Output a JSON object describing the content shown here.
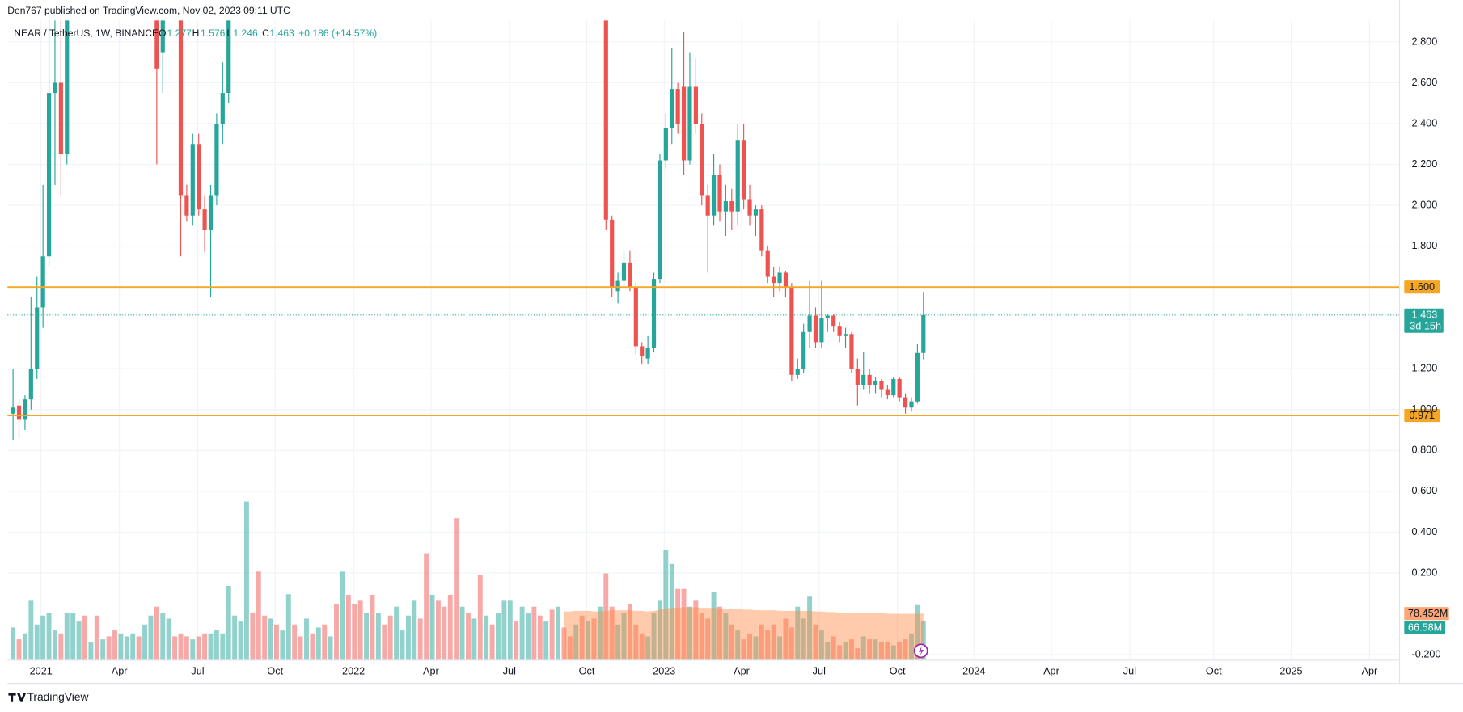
{
  "chart_data": {
    "type": "candlestick",
    "header": "Den767 published on TradingView.com, Nov 02, 2023 09:11 UTC",
    "symbol": "NEAR / TetherUS, 1W, BINANCE",
    "ohlc_labels": [
      "O",
      "H",
      "L",
      "C"
    ],
    "change": "+0.186 (+14.57%)",
    "countdown": "3d 15h",
    "brand": "TradingView",
    "up_color": "#26a69a",
    "down_color": "#ef5350",
    "level_color": "#f5a623",
    "grid": true,
    "xlim": [
      -0.93,
      231.5
    ],
    "ylim": [
      -0.227,
      2.905
    ],
    "xticks": [
      {
        "value": 4.67,
        "label": "2021"
      },
      {
        "value": 17.76,
        "label": "Apr"
      },
      {
        "value": 30.84,
        "label": "Jul"
      },
      {
        "value": 43.77,
        "label": "Oct"
      },
      {
        "value": 56.85,
        "label": "2022"
      },
      {
        "value": 69.78,
        "label": "Apr"
      },
      {
        "value": 82.87,
        "label": "Jul"
      },
      {
        "value": 95.79,
        "label": "Oct"
      },
      {
        "value": 108.72,
        "label": "2023"
      },
      {
        "value": 121.65,
        "label": "Apr"
      },
      {
        "value": 134.58,
        "label": "Jul"
      },
      {
        "value": 147.66,
        "label": "Oct"
      },
      {
        "value": 160.44,
        "label": "2024"
      },
      {
        "value": 173.36,
        "label": "Apr"
      },
      {
        "value": 186.45,
        "label": "Jul"
      },
      {
        "value": 200.47,
        "label": "Oct"
      },
      {
        "value": 213.4,
        "label": "2025"
      },
      {
        "value": 226.48,
        "label": "Apr"
      }
    ],
    "yticks": [
      {
        "value": 2.8,
        "label": "2.800"
      },
      {
        "value": 2.6,
        "label": "2.600"
      },
      {
        "value": 2.4,
        "label": "2.400"
      },
      {
        "value": 2.2,
        "label": "2.200"
      },
      {
        "value": 2.0,
        "label": "2.000"
      },
      {
        "value": 1.8,
        "label": "1.800"
      },
      {
        "value": 1.2,
        "label": "1.200"
      },
      {
        "value": 1.0,
        "label": "1.000"
      },
      {
        "value": 0.8,
        "label": "0.800"
      },
      {
        "value": 0.6,
        "label": "0.600"
      },
      {
        "value": 0.4,
        "label": "0.400"
      },
      {
        "value": 0.2,
        "label": "0.200"
      },
      {
        "value": -0.2,
        "label": "-0.200"
      }
    ],
    "levels": [
      {
        "value": 1.6,
        "label": "1.600"
      },
      {
        "value": 0.971,
        "label": "0.971"
      }
    ],
    "open": [
      0.98,
      1.02,
      0.95,
      1.05,
      1.2,
      1.5,
      1.75,
      2.55,
      2.6,
      2.25,
      null,
      null,
      null,
      null,
      null,
      null,
      null,
      null,
      null,
      null,
      null,
      null,
      null,
      null,
      3.1,
      2.75,
      null,
      null,
      3.0,
      2.05,
      1.95,
      2.3,
      1.98,
      1.88,
      2.05,
      2.4,
      2.55,
      null,
      null,
      null,
      null,
      null,
      null,
      null,
      null,
      null,
      null,
      null,
      null,
      null,
      null,
      null,
      null,
      null,
      null,
      null,
      null,
      null,
      null,
      null,
      null,
      null,
      null,
      null,
      null,
      null,
      null,
      null,
      null,
      null,
      null,
      null,
      null,
      null,
      null,
      null,
      null,
      null,
      null,
      null,
      null,
      null,
      null,
      null,
      null,
      null,
      null,
      null,
      null,
      null,
      null,
      null,
      null,
      null,
      null,
      null,
      null,
      null,
      null,
      3.2,
      1.93,
      1.58,
      1.63,
      1.72,
      1.6,
      1.31,
      1.25,
      1.3,
      1.64,
      2.22,
      2.38,
      2.57,
      2.58,
      2.22,
      2.58,
      2.4,
      2.05,
      1.95,
      2.15,
      1.97,
      2.02,
      1.97,
      2.32,
      2.03,
      1.95,
      1.98,
      1.78,
      1.65,
      1.62,
      1.67,
      1.6,
      1.17,
      1.2,
      1.38,
      1.46,
      1.33,
      1.45,
      1.46,
      1.41,
      1.36,
      1.37,
      1.2,
      1.12,
      1.17,
      1.12,
      1.14,
      1.1,
      1.07,
      1.15,
      1.06,
      1.01,
      1.04,
      1.277
    ],
    "high": [
      1.2,
      1.05,
      1.07,
      1.55,
      1.65,
      2.1,
      2.95,
      2.95,
      2.95,
      3.2,
      null,
      null,
      null,
      null,
      null,
      null,
      null,
      null,
      null,
      null,
      null,
      null,
      null,
      null,
      3.3,
      3.2,
      null,
      null,
      3.2,
      2.1,
      2.35,
      2.35,
      2.05,
      2.1,
      2.45,
      2.7,
      3.2,
      null,
      null,
      null,
      null,
      null,
      null,
      null,
      null,
      null,
      null,
      null,
      null,
      null,
      null,
      null,
      null,
      null,
      null,
      null,
      null,
      null,
      null,
      null,
      null,
      null,
      null,
      null,
      null,
      null,
      null,
      null,
      null,
      null,
      null,
      null,
      null,
      null,
      null,
      null,
      null,
      null,
      null,
      null,
      null,
      null,
      null,
      null,
      null,
      null,
      null,
      null,
      null,
      null,
      null,
      null,
      null,
      null,
      null,
      null,
      null,
      null,
      null,
      3.3,
      1.95,
      1.67,
      1.78,
      1.78,
      1.62,
      1.33,
      1.36,
      1.67,
      2.25,
      2.45,
      2.77,
      2.6,
      2.85,
      2.75,
      2.72,
      2.45,
      2.1,
      2.25,
      2.2,
      2.1,
      2.08,
      2.4,
      2.4,
      2.1,
      2.0,
      2.0,
      1.8,
      1.7,
      1.7,
      1.68,
      1.62,
      1.25,
      1.42,
      1.63,
      1.5,
      1.63,
      1.47,
      1.47,
      1.43,
      1.4,
      1.38,
      1.25,
      1.28,
      1.2,
      1.16,
      1.15,
      1.12,
      1.16,
      1.16,
      1.08,
      1.06,
      1.32,
      1.576
    ],
    "low": [
      0.85,
      0.86,
      0.9,
      1.0,
      1.15,
      1.4,
      1.7,
      2.1,
      2.05,
      2.2,
      null,
      null,
      null,
      null,
      null,
      null,
      null,
      null,
      null,
      null,
      null,
      null,
      null,
      null,
      2.2,
      2.55,
      null,
      null,
      1.75,
      1.92,
      1.9,
      1.95,
      1.77,
      1.55,
      2.0,
      2.3,
      2.5,
      null,
      null,
      null,
      null,
      null,
      null,
      null,
      null,
      null,
      null,
      null,
      null,
      null,
      null,
      null,
      null,
      null,
      null,
      null,
      null,
      null,
      null,
      null,
      null,
      null,
      null,
      null,
      null,
      null,
      null,
      null,
      null,
      null,
      null,
      null,
      null,
      null,
      null,
      null,
      null,
      null,
      null,
      null,
      null,
      null,
      null,
      null,
      null,
      null,
      null,
      null,
      null,
      null,
      null,
      null,
      null,
      null,
      null,
      null,
      null,
      null,
      null,
      1.88,
      1.55,
      1.52,
      1.6,
      1.58,
      1.27,
      1.22,
      1.22,
      1.28,
      1.62,
      2.18,
      2.3,
      2.35,
      2.15,
      2.2,
      2.35,
      2.0,
      1.67,
      1.9,
      1.92,
      1.85,
      1.88,
      1.9,
      1.98,
      1.9,
      1.85,
      1.75,
      1.62,
      1.55,
      1.58,
      1.55,
      1.14,
      1.15,
      1.18,
      1.3,
      1.3,
      1.3,
      1.38,
      1.38,
      1.33,
      1.3,
      1.18,
      1.02,
      1.1,
      1.08,
      1.08,
      1.06,
      1.05,
      1.06,
      1.04,
      0.98,
      0.99,
      1.03,
      1.246
    ],
    "close": [
      1.01,
      0.95,
      1.05,
      1.2,
      1.5,
      1.75,
      2.55,
      2.6,
      2.25,
      3.0,
      null,
      null,
      null,
      null,
      null,
      null,
      null,
      null,
      null,
      null,
      null,
      null,
      null,
      null,
      2.67,
      3.0,
      null,
      null,
      2.05,
      1.95,
      2.3,
      1.98,
      1.88,
      2.05,
      2.4,
      2.55,
      3.0,
      null,
      null,
      null,
      null,
      null,
      null,
      null,
      null,
      null,
      null,
      null,
      null,
      null,
      null,
      null,
      null,
      null,
      null,
      null,
      null,
      null,
      null,
      null,
      null,
      null,
      null,
      null,
      null,
      null,
      null,
      null,
      null,
      null,
      null,
      null,
      null,
      null,
      null,
      null,
      null,
      null,
      null,
      null,
      null,
      null,
      null,
      null,
      null,
      null,
      null,
      null,
      null,
      null,
      null,
      null,
      null,
      null,
      null,
      null,
      null,
      null,
      null,
      1.93,
      1.6,
      1.63,
      1.72,
      1.6,
      1.31,
      1.26,
      1.3,
      1.64,
      2.22,
      2.38,
      2.57,
      2.4,
      2.22,
      2.58,
      2.4,
      2.05,
      1.95,
      2.15,
      1.97,
      2.02,
      1.97,
      2.32,
      2.03,
      1.95,
      1.98,
      1.78,
      1.65,
      1.62,
      1.67,
      1.6,
      1.17,
      1.2,
      1.38,
      1.46,
      1.33,
      1.45,
      1.46,
      1.41,
      1.36,
      1.37,
      1.2,
      1.12,
      1.17,
      1.12,
      1.14,
      1.1,
      1.07,
      1.15,
      1.06,
      1.01,
      1.04,
      1.277,
      1.463
    ],
    "volume": {
      "ylim": [
        0,
        1077
      ],
      "up_color": "rgba(38,166,154,0.5)",
      "down_color": "rgba(239,83,80,0.5)",
      "last_value_label": "66.58M",
      "values": [
        55,
        35,
        45,
        100,
        60,
        75,
        80,
        50,
        45,
        80,
        80,
        65,
        75,
        30,
        75,
        35,
        40,
        50,
        45,
        40,
        45,
        40,
        60,
        75,
        90,
        80,
        70,
        40,
        45,
        40,
        35,
        40,
        45,
        45,
        50,
        45,
        125,
        75,
        65,
        267,
        80,
        149,
        75,
        70,
        60,
        50,
        111,
        60,
        40,
        70,
        45,
        55,
        60,
        40,
        95,
        149,
        110,
        95,
        100,
        80,
        110,
        80,
        60,
        75,
        90,
        50,
        75,
        100,
        70,
        180,
        110,
        100,
        90,
        110,
        239,
        90,
        80,
        70,
        143,
        75,
        60,
        80,
        100,
        100,
        65,
        90,
        80,
        90,
        75,
        65,
        85,
        90,
        55,
        40,
        60,
        75,
        65,
        70,
        90,
        146,
        90,
        60,
        80,
        95,
        60,
        45,
        40,
        80,
        100,
        185,
        162,
        120,
        120,
        90,
        100,
        80,
        70,
        115,
        90,
        80,
        60,
        50,
        35,
        45,
        40,
        60,
        50,
        60,
        40,
        70,
        55,
        90,
        70,
        107,
        60,
        50,
        30,
        40,
        25,
        30,
        35,
        20,
        40,
        35,
        35,
        30,
        30,
        25,
        30,
        35,
        45,
        94,
        66.58
      ],
      "rising": [
        true,
        false,
        true,
        true,
        true,
        true,
        true,
        true,
        false,
        true,
        true,
        true,
        false,
        true,
        false,
        true,
        false,
        false,
        true,
        true,
        true,
        false,
        true,
        true,
        false,
        true,
        true,
        false,
        false,
        false,
        true,
        false,
        false,
        true,
        true,
        true,
        true,
        true,
        true,
        true,
        false,
        false,
        false,
        true,
        false,
        true,
        true,
        false,
        false,
        true,
        false,
        true,
        false,
        true,
        false,
        true,
        false,
        false,
        false,
        true,
        false,
        true,
        false,
        false,
        true,
        true,
        true,
        true,
        false,
        false,
        true,
        false,
        false,
        false,
        false,
        true,
        false,
        true,
        false,
        true,
        false,
        true,
        true,
        true,
        false,
        true,
        true,
        false,
        false,
        true,
        false,
        true,
        false,
        false,
        true,
        false,
        true,
        false,
        true,
        false,
        false,
        true,
        true,
        false,
        false,
        false,
        true,
        true,
        true,
        true,
        true,
        false,
        false,
        true,
        false,
        false,
        false,
        true,
        false,
        true,
        false,
        true,
        false,
        false,
        true,
        false,
        false,
        false,
        true,
        false,
        false,
        true,
        true,
        true,
        false,
        true,
        true,
        false,
        false,
        true,
        false,
        false,
        true,
        false,
        true,
        false,
        false,
        true,
        false,
        false,
        true,
        true,
        true
      ]
    },
    "volume_ma": {
      "color": "rgba(255,140,70,0.45)",
      "last_value_label": "78.452M",
      "values": [
        null,
        null,
        null,
        null,
        null,
        null,
        null,
        null,
        null,
        null,
        null,
        null,
        null,
        null,
        null,
        null,
        null,
        null,
        null,
        null,
        null,
        null,
        null,
        null,
        null,
        null,
        null,
        null,
        null,
        null,
        null,
        null,
        null,
        null,
        null,
        null,
        null,
        null,
        null,
        null,
        null,
        null,
        null,
        null,
        null,
        null,
        null,
        null,
        null,
        null,
        null,
        null,
        null,
        null,
        null,
        null,
        null,
        null,
        null,
        null,
        null,
        null,
        null,
        null,
        null,
        null,
        null,
        null,
        null,
        null,
        null,
        null,
        null,
        null,
        null,
        null,
        null,
        null,
        null,
        null,
        null,
        null,
        null,
        null,
        null,
        null,
        null,
        null,
        null,
        null,
        null,
        null,
        82,
        82,
        83,
        83,
        83,
        82,
        82,
        83,
        84,
        84,
        84,
        84,
        83,
        83,
        82,
        83,
        85,
        87,
        88,
        88,
        89,
        89,
        89,
        88,
        88,
        88,
        87,
        87,
        86,
        86,
        85,
        85,
        84,
        84,
        84,
        84,
        83,
        83,
        83,
        83,
        83,
        83,
        82,
        82,
        81,
        81,
        80,
        80,
        80,
        79,
        79,
        79,
        79,
        79,
        78,
        78,
        78,
        78,
        78,
        78,
        78.452
      ]
    }
  }
}
